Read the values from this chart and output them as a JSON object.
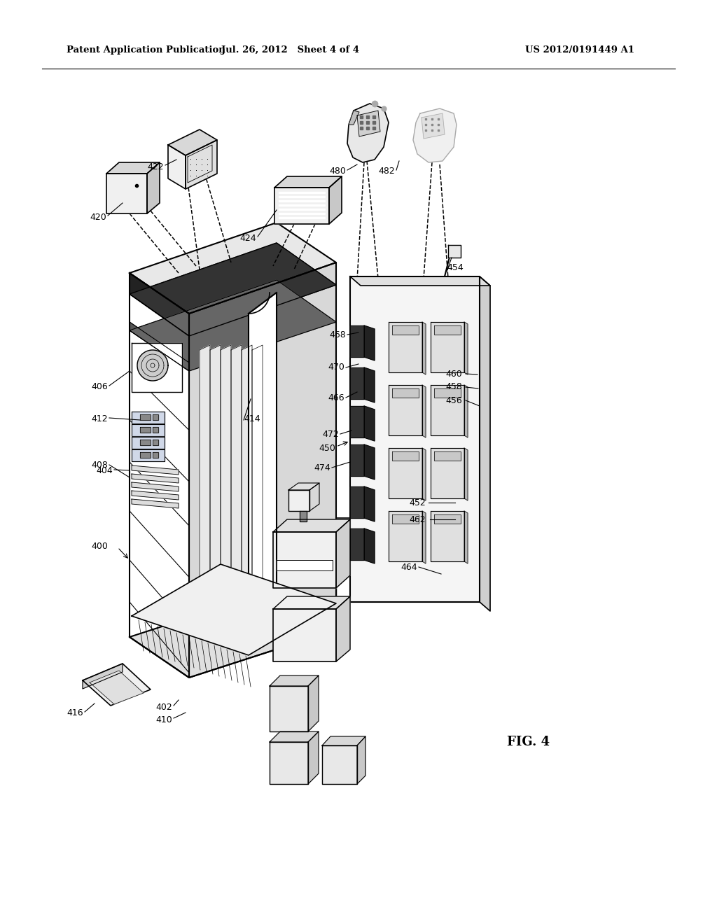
{
  "background_color": "#ffffff",
  "header_left": "Patent Application Publication",
  "header_center": "Jul. 26, 2012   Sheet 4 of 4",
  "header_right": "US 2012/0191449 A1",
  "fig_label": "FIG. 4"
}
